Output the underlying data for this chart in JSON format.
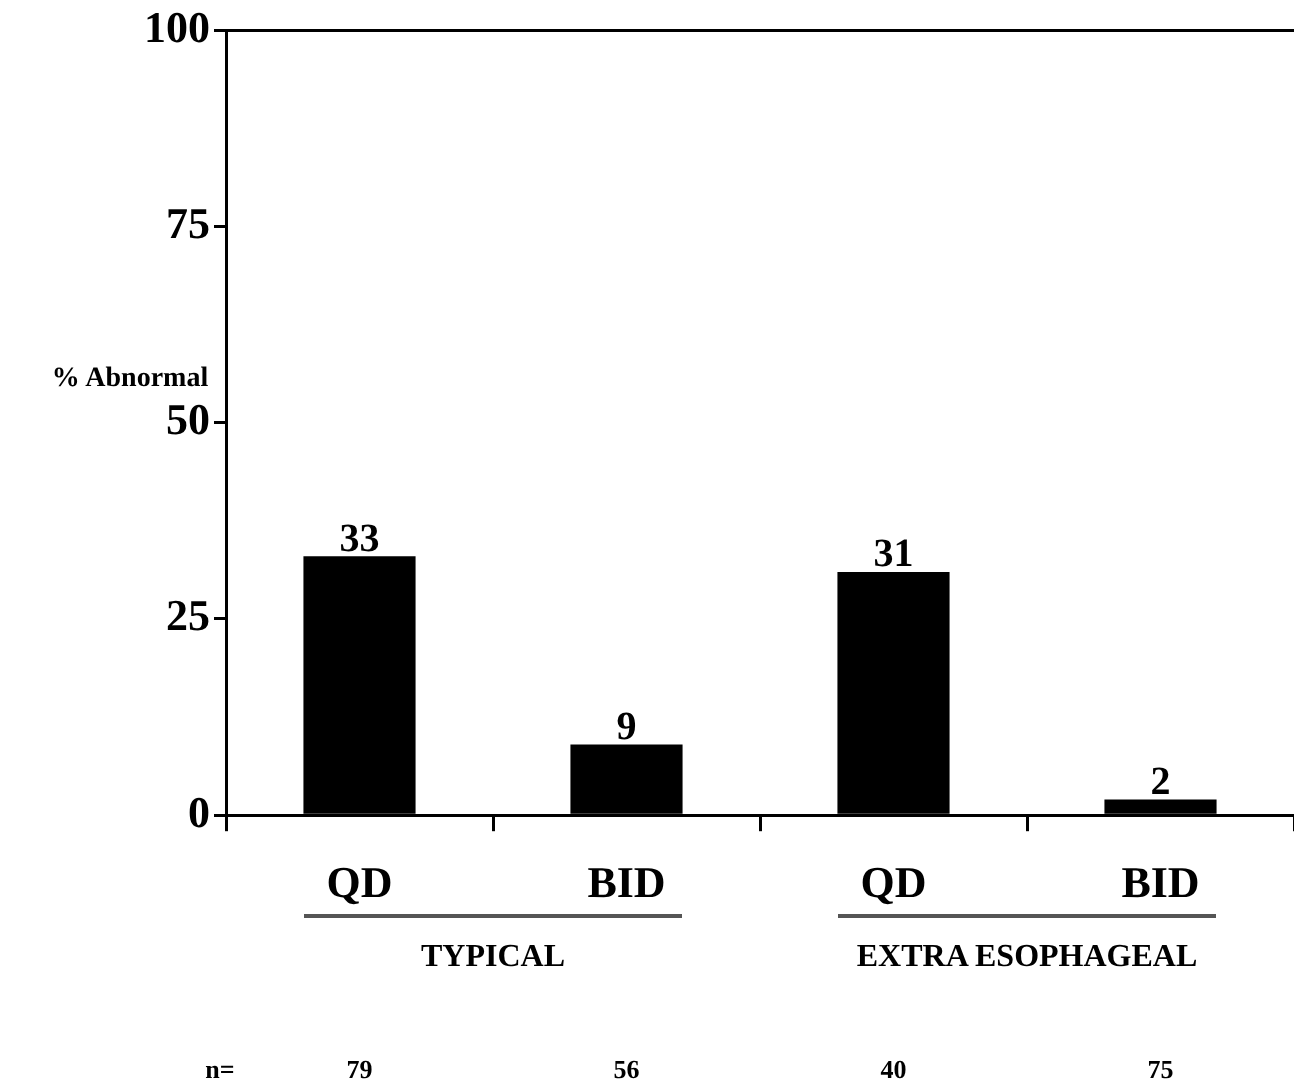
{
  "chart_data": {
    "type": "bar",
    "ylabel": "% Abnormal",
    "categories": [
      "QD",
      "BID",
      "QD",
      "BID"
    ],
    "values": [
      33,
      9,
      31,
      2
    ],
    "color": "#000000",
    "ylim": [
      0,
      100
    ],
    "yticks": [
      0,
      25,
      50,
      75,
      100
    ],
    "grid": false,
    "data_labels": true,
    "annotations": [
      "TYPICAL",
      "EXTRA ESOPHAGEAL",
      "n=",
      "79",
      "56",
      "40",
      "75"
    ]
  }
}
